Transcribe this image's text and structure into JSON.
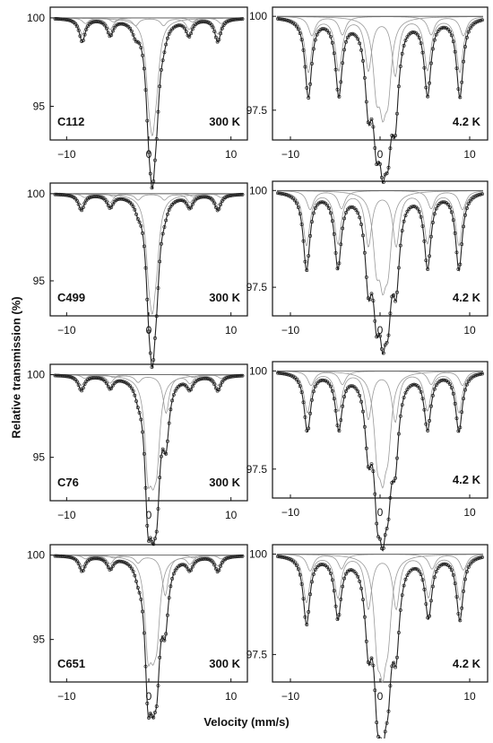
{
  "figure": {
    "ylabel": "Relative transmission (%)",
    "xlabel": "Velocity (mm/s)"
  },
  "chart_data": [
    {
      "type": "scatter",
      "title": "",
      "sample": "C112",
      "temperature": "300 K",
      "xlim": [
        -12,
        12
      ],
      "ylim": [
        93.4,
        100.3
      ],
      "xticks": [
        -10,
        0,
        10
      ],
      "yticks": [
        100,
        95
      ],
      "fit_components": [
        "sextet",
        "sextet",
        "doublet"
      ],
      "lines": [
        {
          "pos": -8.1,
          "depth": 1.3
        },
        {
          "pos": -4.7,
          "depth": 0.9
        },
        {
          "pos": -1.6,
          "depth": 0.6
        },
        {
          "pos": 0.0,
          "depth": 3.8
        },
        {
          "pos": 0.45,
          "depth": 6.2
        },
        {
          "pos": 0.95,
          "depth": 3.2
        },
        {
          "pos": 1.8,
          "depth": 0.6
        },
        {
          "pos": 4.9,
          "depth": 0.9
        },
        {
          "pos": 8.4,
          "depth": 1.3
        }
      ]
    },
    {
      "type": "scatter",
      "title": "",
      "sample": "C112",
      "temperature": "4.2 K",
      "xlim": [
        -12,
        12
      ],
      "ylim": [
        96.85,
        100.1
      ],
      "xticks": [
        -10,
        0,
        10
      ],
      "yticks": [
        100,
        97.5
      ],
      "fit_components": [
        "sextet",
        "sextet",
        "sextet",
        "doublet",
        "broad"
      ],
      "lines": [
        {
          "pos": -8.0,
          "depth": 2.1
        },
        {
          "pos": -4.6,
          "depth": 2.0
        },
        {
          "pos": -1.3,
          "depth": 2.0
        },
        {
          "pos": -0.4,
          "depth": 2.4
        },
        {
          "pos": 0.3,
          "depth": 2.5
        },
        {
          "pos": 0.9,
          "depth": 2.3
        },
        {
          "pos": 1.7,
          "depth": 2.2
        },
        {
          "pos": 5.3,
          "depth": 2.0
        },
        {
          "pos": 8.9,
          "depth": 2.1
        }
      ]
    },
    {
      "type": "scatter",
      "title": "",
      "sample": "C499",
      "temperature": "300 K",
      "xlim": [
        -12,
        12
      ],
      "ylim": [
        93.3,
        100.3
      ],
      "xticks": [
        -10,
        0,
        10
      ],
      "yticks": [
        100,
        95
      ],
      "fit_components": [
        "sextet",
        "sextet",
        "doublet"
      ],
      "lines": [
        {
          "pos": -8.2,
          "depth": 0.9
        },
        {
          "pos": -4.7,
          "depth": 0.7
        },
        {
          "pos": -1.3,
          "depth": 0.5
        },
        {
          "pos": 0.0,
          "depth": 4.0
        },
        {
          "pos": 0.45,
          "depth": 6.4
        },
        {
          "pos": 0.95,
          "depth": 3.3
        },
        {
          "pos": 1.9,
          "depth": 0.5
        },
        {
          "pos": 5.0,
          "depth": 0.7
        },
        {
          "pos": 8.4,
          "depth": 0.9
        }
      ]
    },
    {
      "type": "scatter",
      "title": "",
      "sample": "C499",
      "temperature": "4.2 K",
      "xlim": [
        -12,
        12
      ],
      "ylim": [
        96.9,
        100.1
      ],
      "xticks": [
        -10,
        0,
        10
      ],
      "yticks": [
        100,
        97.5
      ],
      "fit_components": [
        "sextet",
        "sextet",
        "sextet",
        "doublet",
        "broad"
      ],
      "lines": [
        {
          "pos": -8.2,
          "depth": 2.0
        },
        {
          "pos": -4.7,
          "depth": 1.9
        },
        {
          "pos": -1.3,
          "depth": 2.0
        },
        {
          "pos": -0.4,
          "depth": 2.3
        },
        {
          "pos": 0.3,
          "depth": 2.4
        },
        {
          "pos": 0.9,
          "depth": 2.2
        },
        {
          "pos": 1.8,
          "depth": 2.0
        },
        {
          "pos": 5.3,
          "depth": 1.9
        },
        {
          "pos": 8.8,
          "depth": 2.0
        }
      ]
    },
    {
      "type": "scatter",
      "title": "",
      "sample": "C76",
      "temperature": "300 K",
      "xlim": [
        -12,
        12
      ],
      "ylim": [
        92.7,
        100.3
      ],
      "xticks": [
        -10,
        0,
        10
      ],
      "yticks": [
        100,
        95
      ],
      "fit_components": [
        "sextet",
        "sextet",
        "doublet",
        "doublet"
      ],
      "lines": [
        {
          "pos": -8.2,
          "depth": 0.9
        },
        {
          "pos": -4.7,
          "depth": 0.7
        },
        {
          "pos": -1.3,
          "depth": 0.6
        },
        {
          "pos": -0.1,
          "depth": 7.0
        },
        {
          "pos": 0.5,
          "depth": 5.0
        },
        {
          "pos": 1.0,
          "depth": 5.5
        },
        {
          "pos": 2.1,
          "depth": 3.3
        },
        {
          "pos": 5.0,
          "depth": 0.7
        },
        {
          "pos": 8.4,
          "depth": 0.9
        }
      ]
    },
    {
      "type": "scatter",
      "title": "",
      "sample": "C76",
      "temperature": "4.2 K",
      "xlim": [
        -12,
        12
      ],
      "ylim": [
        96.9,
        100.1
      ],
      "xticks": [
        -10,
        0,
        10
      ],
      "yticks": [
        100,
        97.5
      ],
      "fit_components": [
        "sextet",
        "sextet",
        "doublet",
        "broad"
      ],
      "lines": [
        {
          "pos": -8.1,
          "depth": 1.5
        },
        {
          "pos": -4.6,
          "depth": 1.4
        },
        {
          "pos": -1.3,
          "depth": 1.7
        },
        {
          "pos": -0.3,
          "depth": 2.5
        },
        {
          "pos": 0.3,
          "depth": 2.6
        },
        {
          "pos": 0.9,
          "depth": 2.1
        },
        {
          "pos": 1.7,
          "depth": 1.8
        },
        {
          "pos": 5.3,
          "depth": 1.4
        },
        {
          "pos": 8.8,
          "depth": 1.5
        }
      ]
    },
    {
      "type": "scatter",
      "title": "",
      "sample": "C651",
      "temperature": "300 K",
      "xlim": [
        -12,
        12
      ],
      "ylim": [
        92.8,
        100.3
      ],
      "xticks": [
        -10,
        0,
        10
      ],
      "yticks": [
        100,
        95
      ],
      "fit_components": [
        "sextet",
        "sextet",
        "doublet",
        "doublet"
      ],
      "lines": [
        {
          "pos": -8.1,
          "depth": 0.9
        },
        {
          "pos": -4.7,
          "depth": 0.7
        },
        {
          "pos": -1.3,
          "depth": 0.6
        },
        {
          "pos": -0.1,
          "depth": 6.8
        },
        {
          "pos": 0.5,
          "depth": 4.6
        },
        {
          "pos": 1.0,
          "depth": 5.1
        },
        {
          "pos": 2.0,
          "depth": 3.4
        },
        {
          "pos": 5.0,
          "depth": 0.7
        },
        {
          "pos": 8.4,
          "depth": 0.9
        }
      ]
    },
    {
      "type": "scatter",
      "title": "",
      "sample": "C651",
      "temperature": "4.2 K",
      "xlim": [
        -12,
        12
      ],
      "ylim": [
        96.95,
        100.1
      ],
      "xticks": [
        -10,
        0,
        10
      ],
      "yticks": [
        100,
        97.5
      ],
      "fit_components": [
        "sextet",
        "sextet",
        "doublet",
        "broad"
      ],
      "lines": [
        {
          "pos": -8.2,
          "depth": 1.7
        },
        {
          "pos": -4.7,
          "depth": 1.5
        },
        {
          "pos": -1.3,
          "depth": 1.9
        },
        {
          "pos": -0.3,
          "depth": 2.7
        },
        {
          "pos": 0.3,
          "depth": 2.8
        },
        {
          "pos": 0.9,
          "depth": 2.2
        },
        {
          "pos": 1.8,
          "depth": 1.9
        },
        {
          "pos": 5.4,
          "depth": 1.5
        },
        {
          "pos": 8.9,
          "depth": 1.6
        }
      ]
    }
  ]
}
